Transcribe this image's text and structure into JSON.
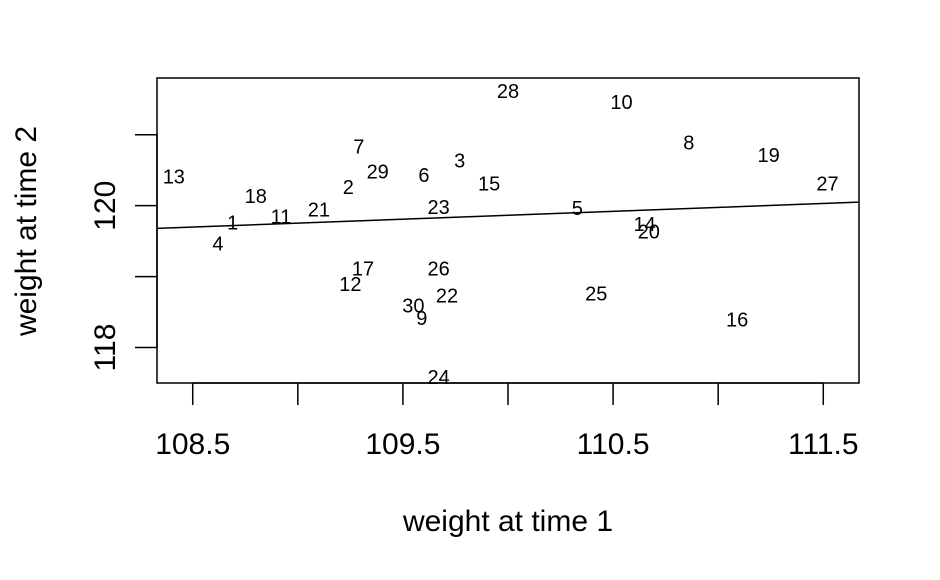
{
  "chart_data": {
    "type": "scatter",
    "title": "",
    "xlabel": "weight at time 1",
    "ylabel": "weight at time 2",
    "xlim": [
      108.33,
      111.67
    ],
    "ylim": [
      117.5,
      121.8
    ],
    "x_ticks": [
      108.5,
      109,
      109.5,
      110,
      110.5,
      111,
      111.5
    ],
    "x_tick_labels": [
      "108.5",
      "",
      "109.5",
      "",
      "110.5",
      "",
      "111.5"
    ],
    "y_ticks": [
      118,
      119,
      120,
      121
    ],
    "y_tick_labels": [
      "118",
      "",
      "120",
      ""
    ],
    "grid": false,
    "legend": "none",
    "points": [
      {
        "label": "1",
        "x": 108.69,
        "y": 119.75
      },
      {
        "label": "2",
        "x": 109.24,
        "y": 120.25
      },
      {
        "label": "3",
        "x": 109.77,
        "y": 120.62
      },
      {
        "label": "4",
        "x": 108.62,
        "y": 119.45
      },
      {
        "label": "5",
        "x": 110.33,
        "y": 119.95
      },
      {
        "label": "6",
        "x": 109.6,
        "y": 120.42
      },
      {
        "label": "7",
        "x": 109.29,
        "y": 120.82
      },
      {
        "label": "8",
        "x": 110.86,
        "y": 120.88
      },
      {
        "label": "9",
        "x": 109.59,
        "y": 118.4
      },
      {
        "label": "10",
        "x": 110.54,
        "y": 121.45
      },
      {
        "label": "11",
        "x": 108.92,
        "y": 119.83
      },
      {
        "label": "12",
        "x": 109.25,
        "y": 118.88
      },
      {
        "label": "13",
        "x": 108.41,
        "y": 120.4
      },
      {
        "label": "14",
        "x": 110.65,
        "y": 119.73
      },
      {
        "label": "15",
        "x": 109.91,
        "y": 120.3
      },
      {
        "label": "16",
        "x": 111.09,
        "y": 118.38
      },
      {
        "label": "17",
        "x": 109.31,
        "y": 119.1
      },
      {
        "label": "18",
        "x": 108.8,
        "y": 120.12
      },
      {
        "label": "19",
        "x": 111.24,
        "y": 120.7
      },
      {
        "label": "20",
        "x": 110.67,
        "y": 119.62
      },
      {
        "label": "21",
        "x": 109.1,
        "y": 119.93
      },
      {
        "label": "22",
        "x": 109.71,
        "y": 118.72
      },
      {
        "label": "23",
        "x": 109.67,
        "y": 119.97
      },
      {
        "label": "24",
        "x": 109.67,
        "y": 117.57
      },
      {
        "label": "25",
        "x": 110.42,
        "y": 118.75
      },
      {
        "label": "26",
        "x": 109.67,
        "y": 119.1
      },
      {
        "label": "27",
        "x": 111.52,
        "y": 120.3
      },
      {
        "label": "28",
        "x": 110.0,
        "y": 121.6
      },
      {
        "label": "29",
        "x": 109.38,
        "y": 120.47
      },
      {
        "label": "30",
        "x": 109.55,
        "y": 118.58
      }
    ],
    "fit_line": {
      "x": [
        108.33,
        111.67
      ],
      "y": [
        119.68,
        120.05
      ]
    }
  }
}
